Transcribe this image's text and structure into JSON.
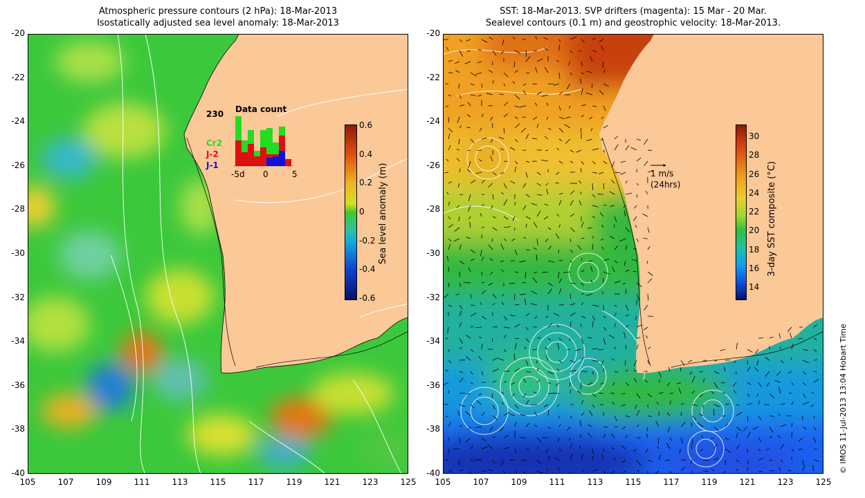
{
  "left_panel": {
    "title_line1": "Atmospheric pressure contours (2 hPa): 18-Mar-2013",
    "title_line2": "Isostatically adjusted sea level anomaly: 18-Mar-2013",
    "colorbar": {
      "label": "Sea level anomaly (m)",
      "ticks": [
        "0.6",
        "0.4",
        "0.2",
        "0",
        "-0.2",
        "-0.4",
        "-0.6"
      ]
    },
    "data_count": {
      "title": "Data count",
      "total": "230",
      "legend": [
        {
          "label": "Cr2",
          "color": "#22dd22"
        },
        {
          "label": "J-2",
          "color": "#dd1111"
        },
        {
          "label": "J-1",
          "color": "#1111dd"
        }
      ],
      "x_ticks": [
        "-5d",
        "0",
        "5"
      ]
    }
  },
  "right_panel": {
    "title_line1": "SST: 18-Mar-2013. SVP drifters (magenta): 15 Mar - 20 Mar.",
    "title_line2": "Sealevel contours (0.1 m) and geostrophic velocity: 18-Mar-2013.",
    "colorbar": {
      "label": "3-day SST composite (°C)",
      "ticks": [
        "30",
        "28",
        "26",
        "24",
        "22",
        "20",
        "18",
        "16",
        "14"
      ]
    },
    "velocity_key": {
      "line1": "1 m/s",
      "line2": "(24hrs)"
    }
  },
  "axes": {
    "lat_ticks": [
      "-20",
      "-22",
      "-24",
      "-26",
      "-28",
      "-30",
      "-32",
      "-34",
      "-36",
      "-38",
      "-40"
    ],
    "lon_ticks": [
      "105",
      "107",
      "109",
      "111",
      "113",
      "115",
      "117",
      "119",
      "121",
      "123",
      "125"
    ]
  },
  "copyright": "© IMOS 11-Jul-2013 13:04 Hobart Time",
  "colors": {
    "land": "#fbc898",
    "ocean_green": "#33c833",
    "sst_orange": "#f0a020",
    "sst_blue": "#1a60ff"
  }
}
